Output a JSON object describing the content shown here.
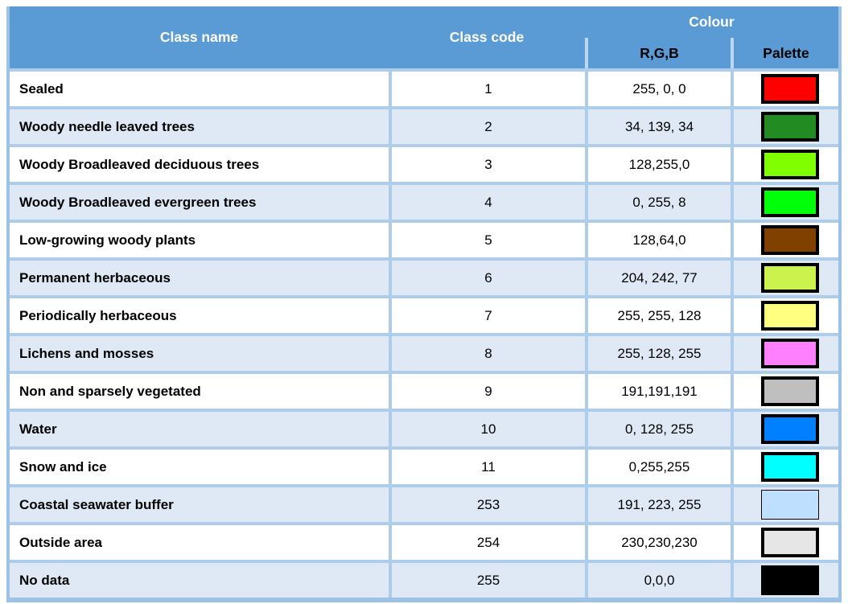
{
  "theme": {
    "header_bg": "#5B9BD5",
    "outer_border": "#9CC2E5",
    "grid_line": "#ADCDEB",
    "header_divider": "#BDD7EE",
    "row_alt": "#DEE9F5",
    "text_on_header": "#FFFFFF",
    "text_dark": "#000000",
    "swatch_border": "#000000"
  },
  "table": {
    "header": {
      "class_name": "Class name",
      "class_code": "Class code",
      "colour": "Colour",
      "rgb": "R,G,B",
      "palette": "Palette"
    },
    "rows": [
      {
        "name": "Sealed",
        "code": "1",
        "rgb": "255, 0, 0",
        "hex": "#FF0000",
        "border": "thick"
      },
      {
        "name": "Woody needle leaved trees",
        "code": "2",
        "rgb": "34, 139, 34",
        "hex": "#228B22",
        "border": "thick"
      },
      {
        "name": "Woody Broadleaved deciduous trees",
        "code": "3",
        "rgb": "128,255,0",
        "hex": "#80FF00",
        "border": "thick"
      },
      {
        "name": "Woody Broadleaved evergreen trees",
        "code": "4",
        "rgb": "0, 255, 8",
        "hex": "#00FF08",
        "border": "thick"
      },
      {
        "name": "Low-growing woody plants",
        "code": "5",
        "rgb": "128,64,0",
        "hex": "#804000",
        "border": "thick"
      },
      {
        "name": "Permanent herbaceous",
        "code": "6",
        "rgb": "204, 242, 77",
        "hex": "#CCF24D",
        "border": "thick"
      },
      {
        "name": "Periodically herbaceous",
        "code": "7",
        "rgb": "255, 255, 128",
        "hex": "#FFFF80",
        "border": "thick"
      },
      {
        "name": "Lichens and mosses",
        "code": "8",
        "rgb": "255, 128, 255",
        "hex": "#FF80FF",
        "border": "thick"
      },
      {
        "name": "Non and sparsely vegetated",
        "code": "9",
        "rgb": "191,191,191",
        "hex": "#BFBFBF",
        "border": "thick"
      },
      {
        "name": "Water",
        "code": "10",
        "rgb": "0, 128, 255",
        "hex": "#0080FF",
        "border": "thick"
      },
      {
        "name": "Snow and ice",
        "code": "11",
        "rgb": "0,255,255",
        "hex": "#00FFFF",
        "border": "thick"
      },
      {
        "name": "Coastal seawater buffer",
        "code": "253",
        "rgb": "191, 223, 255",
        "hex": "#BFDFFF",
        "border": "thin"
      },
      {
        "name": "Outside area",
        "code": "254",
        "rgb": "230,230,230",
        "hex": "#E6E6E6",
        "border": "thick"
      },
      {
        "name": "No data",
        "code": "255",
        "rgb": "0,0,0",
        "hex": "#000000",
        "border": "thick"
      }
    ]
  }
}
